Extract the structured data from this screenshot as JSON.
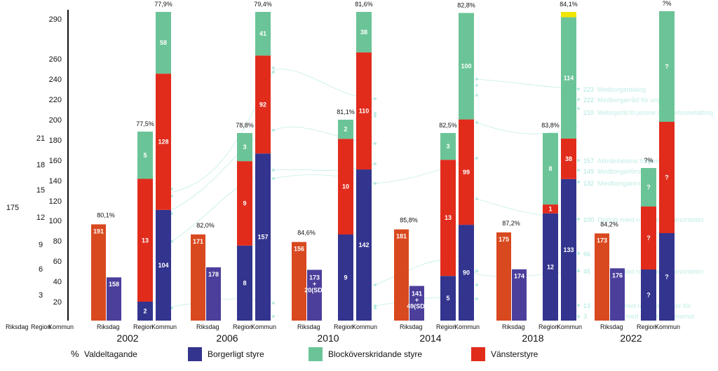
{
  "chart_data": {
    "type": "bar",
    "title": "",
    "xlabel": "",
    "ylabel": "",
    "ylim": [
      0,
      290
    ],
    "y_ticks": [
      "20",
      "40",
      "60",
      "80",
      "100",
      "120",
      "140",
      "160",
      "180",
      "200",
      "220",
      "240",
      "260",
      "290"
    ],
    "left_ticks": [
      "3",
      "6",
      "9",
      "12",
      "15",
      "18",
      "21"
    ],
    "left_label": "175",
    "bottom_axis_labels": {
      "riksdag": "Riksdag",
      "region": "Region",
      "kommun": "Kommun"
    },
    "years": [
      "2002",
      "2006",
      "2010",
      "2014",
      "2018",
      "2022"
    ],
    "colors": {
      "riksdag": "#D9491F",
      "riksdag_borgerligt": "#4B3F9B",
      "borgerligt": "#33348E",
      "blockoverskridande": "#6BC497",
      "vanster": "#E12C1C",
      "other": "#F2E600",
      "faint": "#8FE0D3"
    },
    "groups": [
      {
        "year": "2002",
        "riksdag": {
          "turnout": "80,1%",
          "left": 191,
          "right": 158
        },
        "region": {
          "turnout": "77,5%",
          "segments": [
            {
              "series": "borgerligt",
              "value": 2
            },
            {
              "series": "vanster",
              "value": 13
            },
            {
              "series": "blockoverskridande",
              "value": 5
            }
          ]
        },
        "kommun": {
          "turnout": "77,9%",
          "segments": [
            {
              "series": "borgerligt",
              "value": 104
            },
            {
              "series": "vanster",
              "value": 128
            },
            {
              "series": "blockoverskridande",
              "value": 58
            }
          ]
        }
      },
      {
        "year": "2006",
        "riksdag": {
          "turnout": "82,0%",
          "left": 171,
          "right": 178
        },
        "region": {
          "turnout": "78,8%",
          "segments": [
            {
              "series": "borgerligt",
              "value": 8
            },
            {
              "series": "vanster",
              "value": 9
            },
            {
              "series": "blockoverskridande",
              "value": 3
            }
          ]
        },
        "kommun": {
          "turnout": "79,4%",
          "segments": [
            {
              "series": "borgerligt",
              "value": 157
            },
            {
              "series": "vanster",
              "value": 92
            },
            {
              "series": "blockoverskridande",
              "value": 41
            }
          ]
        }
      },
      {
        "year": "2010",
        "riksdag": {
          "turnout": "84,6%",
          "left": 156,
          "right_label": "173 + 20(SD)"
        },
        "region": {
          "turnout": "81,1%",
          "segments": [
            {
              "series": "borgerligt",
              "value": 9
            },
            {
              "series": "vanster",
              "value": 10
            },
            {
              "series": "blockoverskridande",
              "value": 2
            }
          ]
        },
        "kommun": {
          "turnout": "81,6%",
          "segments": [
            {
              "series": "borgerligt",
              "value": 142
            },
            {
              "series": "vanster",
              "value": 110
            },
            {
              "series": "blockoverskridande",
              "value": 38
            }
          ]
        }
      },
      {
        "year": "2014",
        "riksdag": {
          "turnout": "85,8%",
          "left": 181,
          "right_label": "141 + 49(SD)"
        },
        "region": {
          "turnout": "82,5%",
          "segments": [
            {
              "series": "borgerligt",
              "value": 5
            },
            {
              "series": "vanster",
              "value": 13
            },
            {
              "series": "blockoverskridande",
              "value": 3
            }
          ]
        },
        "kommun": {
          "turnout": "82,8%",
          "segments": [
            {
              "series": "borgerligt",
              "value": 90
            },
            {
              "series": "vanster",
              "value": 99
            },
            {
              "series": "blockoverskridande",
              "value": 100
            }
          ]
        }
      },
      {
        "year": "2018",
        "riksdag": {
          "turnout": "87,2%",
          "left": 175,
          "right": 174
        },
        "region": {
          "turnout": "83,8%",
          "segments": [
            {
              "series": "borgerligt",
              "value": 12
            },
            {
              "series": "vanster",
              "value": 1
            },
            {
              "series": "blockoverskridande",
              "value": 8
            }
          ]
        },
        "kommun": {
          "turnout": "84,1%",
          "segments": [
            {
              "series": "borgerligt",
              "value": 133
            },
            {
              "series": "vanster",
              "value": 38
            },
            {
              "series": "blockoverskridande",
              "value": 114
            },
            {
              "series": "other",
              "value": 5
            }
          ]
        }
      },
      {
        "year": "2022",
        "riksdag": {
          "turnout": "84,2%",
          "left": 173,
          "right": 176
        },
        "region": {
          "turnout": "?%",
          "segments": [
            {
              "series": "borgerligt",
              "label": "?"
            },
            {
              "series": "vanster",
              "label": "?"
            },
            {
              "series": "blockoverskridande",
              "label": "?"
            }
          ]
        },
        "kommun": {
          "turnout": "?%",
          "segments": [
            {
              "series": "borgerligt",
              "label": "?"
            },
            {
              "series": "vanster",
              "label": "?"
            },
            {
              "series": "blockoverskridande",
              "label": "?"
            }
          ]
        }
      }
    ],
    "legend": [
      {
        "key": "turnout",
        "symbol": "%",
        "label": "Valdeltagande"
      },
      {
        "key": "borgerligt",
        "label": "Borgerligt styre"
      },
      {
        "key": "blockoverskridande",
        "label": "Blocköverskridande styre"
      },
      {
        "key": "vanster",
        "label": "Vänsterstyre"
      }
    ],
    "background_annotations": [
      {
        "value": "223",
        "label": "Medborgardialog"
      },
      {
        "value": "222",
        "label": "Medborgarråd för unga"
      },
      {
        "value": "210",
        "label": "Medborgarråd för personer med funktionsnedsättning"
      },
      {
        "value": "157",
        "label": "Allmänhetens frågestund"
      },
      {
        "value": "149",
        "label": "Medborgarförslag"
      },
      {
        "value": "132",
        "label": "Medborgarinitiativ"
      },
      {
        "value": "100",
        "label": "Dialog med nationella minoriteter"
      },
      {
        "value": "66",
        "label": ""
      },
      {
        "value": "45",
        "label": "Dialog med nationella minoriteter"
      },
      {
        "value": "13",
        "label": "Samråd med representanter för"
      },
      {
        "value": "3",
        "label": "personer med utländsk härkomst"
      }
    ]
  }
}
